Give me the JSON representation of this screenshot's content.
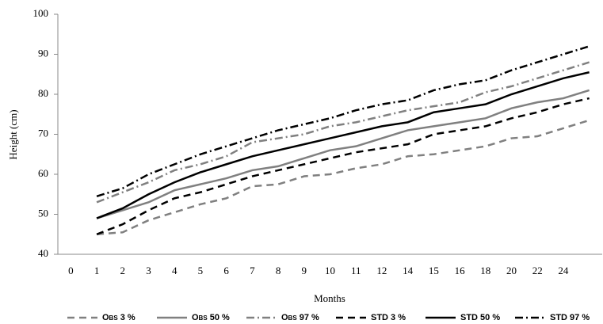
{
  "chart_data": {
    "type": "line",
    "x_label": "Months",
    "y_label": "Height (cm)",
    "categories": [
      "0",
      "1",
      "2",
      "3",
      "4",
      "5",
      "6",
      "7",
      "8",
      "9",
      "10",
      "11",
      "12",
      "14",
      "15",
      "16",
      "18",
      "20",
      "22",
      "24",
      null
    ],
    "ylim": [
      40,
      100
    ],
    "yticks": [
      40,
      50,
      60,
      70,
      80,
      90,
      100
    ],
    "grid": false,
    "legend": "bottom",
    "series": [
      {
        "name": "Obs 3 %",
        "color": "#808080",
        "style": "dashed",
        "values": [
          null,
          45,
          45.5,
          48.5,
          50.5,
          52.5,
          54,
          57,
          57.5,
          59.5,
          60,
          61.5,
          62.5,
          64.5,
          65,
          66,
          67,
          69,
          69.5,
          71.5,
          73.5
        ]
      },
      {
        "name": "Obs 50 %",
        "color": "#808080",
        "style": "solid",
        "values": [
          null,
          49,
          51,
          53,
          56,
          57.5,
          59,
          61,
          62,
          64,
          66,
          67,
          69,
          71,
          72,
          73,
          74,
          76.5,
          78,
          79,
          81
        ]
      },
      {
        "name": "Obs 97 %",
        "color": "#808080",
        "style": "dashdot",
        "values": [
          null,
          53,
          55.5,
          58,
          61,
          62.5,
          64.5,
          68,
          69,
          70,
          72,
          73,
          74.5,
          76,
          77,
          78,
          80.5,
          82,
          84,
          86,
          88
        ]
      },
      {
        "name": "STD 3 %",
        "color": "#000000",
        "style": "dashed",
        "values": [
          null,
          45,
          47.5,
          51,
          54,
          55.5,
          57.5,
          59.5,
          61,
          62.5,
          64,
          65.5,
          66.5,
          67.5,
          70,
          71,
          72,
          74,
          75.5,
          77.5,
          79
        ]
      },
      {
        "name": "STD 50 %",
        "color": "#000000",
        "style": "solid",
        "values": [
          null,
          49,
          51.5,
          55,
          58,
          60.5,
          62.5,
          64.5,
          66,
          67.5,
          69,
          70.5,
          72,
          73,
          75.5,
          76.5,
          77.5,
          80,
          82,
          84,
          85.5
        ]
      },
      {
        "name": "STD 97 %",
        "color": "#000000",
        "style": "dashdot",
        "values": [
          null,
          54.5,
          56.5,
          60,
          62.5,
          65,
          67,
          69,
          71,
          72.5,
          74,
          76,
          77.5,
          78.5,
          81,
          82.5,
          83.5,
          86,
          88,
          90,
          92
        ]
      }
    ]
  }
}
